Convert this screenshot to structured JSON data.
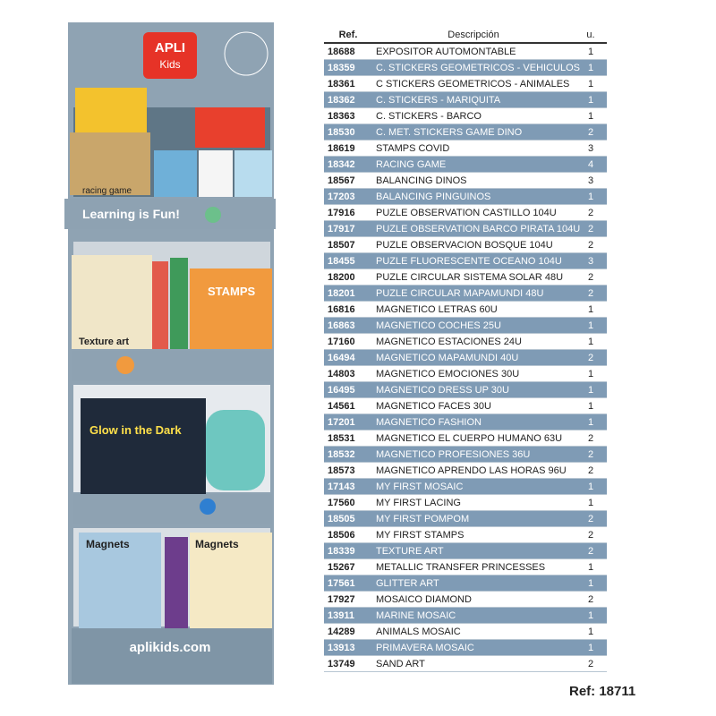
{
  "display": {
    "brand": "APLI",
    "brand_sub": "Kids",
    "slogan": "Learning is Fun!",
    "products": [
      "racing game",
      "Texture art",
      "STAMPS",
      "Glow in the Dark",
      "Magnets",
      "Magnets"
    ],
    "website": "aplikids.com"
  },
  "table": {
    "header": [
      "Ref.",
      "Descripción",
      "u."
    ],
    "rows": [
      [
        "18688",
        "EXPOSITOR AUTOMONTABLE",
        "1"
      ],
      [
        "18359",
        "C. STICKERS GEOMETRICOS - VEHICULOS",
        "1"
      ],
      [
        "18361",
        "C STICKERS GEOMETRICOS - ANIMALES",
        "1"
      ],
      [
        "18362",
        "C. STICKERS - MARIQUITA",
        "1"
      ],
      [
        "18363",
        "C. STICKERS - BARCO",
        "1"
      ],
      [
        "18530",
        "C. MET. STICKERS GAME DINO",
        "2"
      ],
      [
        "18619",
        "STAMPS COVID",
        "3"
      ],
      [
        "18342",
        "RACING GAME",
        "4"
      ],
      [
        "18567",
        "BALANCING DINOS",
        "3"
      ],
      [
        "17203",
        "BALANCING PINGUINOS",
        "1"
      ],
      [
        "17916",
        "PUZLE OBSERVATION CASTILLO 104U",
        "2"
      ],
      [
        "17917",
        "PUZLE OBSERVATION BARCO PIRATA 104U",
        "2"
      ],
      [
        "18507",
        "PUZLE OBSERVACION BOSQUE 104U",
        "2"
      ],
      [
        "18455",
        "PUZLE FLUORESCENTE OCEANO 104U",
        "3"
      ],
      [
        "18200",
        "PUZLE CIRCULAR SISTEMA SOLAR 48U",
        "2"
      ],
      [
        "18201",
        "PUZLE CIRCULAR MAPAMUNDI 48U",
        "2"
      ],
      [
        "16816",
        "MAGNETICO LETRAS 60U",
        "1"
      ],
      [
        "16863",
        "MAGNETICO COCHES 25U",
        "1"
      ],
      [
        "17160",
        "MAGNETICO ESTACIONES 24U",
        "1"
      ],
      [
        "16494",
        "MAGNETICO MAPAMUNDI 40U",
        "2"
      ],
      [
        "14803",
        "MAGNETICO EMOCIONES 30U",
        "1"
      ],
      [
        "16495",
        "MAGNETICO DRESS UP 30U",
        "1"
      ],
      [
        "14561",
        "MAGNETICO FACES 30U",
        "1"
      ],
      [
        "17201",
        "MAGNETICO FASHION",
        "1"
      ],
      [
        "18531",
        "MAGNETICO EL CUERPO HUMANO 63U",
        "2"
      ],
      [
        "18532",
        "MAGNETICO PROFESIONES 36U",
        "2"
      ],
      [
        "18573",
        "MAGNETICO APRENDO LAS HORAS 96U",
        "2"
      ],
      [
        "17143",
        "MY FIRST MOSAIC",
        "1"
      ],
      [
        "17560",
        "MY FIRST LACING",
        "1"
      ],
      [
        "18505",
        "MY FIRST POMPOM",
        "2"
      ],
      [
        "18506",
        "MY FIRST STAMPS",
        "2"
      ],
      [
        "18339",
        "TEXTURE ART",
        "2"
      ],
      [
        "15267",
        "METALLIC TRANSFER PRINCESSES",
        "1"
      ],
      [
        "17561",
        "GLITTER ART",
        "1"
      ],
      [
        "17927",
        "MOSAICO DIAMOND",
        "2"
      ],
      [
        "13911",
        "MARINE MOSAIC",
        "1"
      ],
      [
        "14289",
        "ANIMALS MOSAIC",
        "1"
      ],
      [
        "13913",
        "PRIMAVERA MOSAIC",
        "1"
      ],
      [
        "13749",
        "SAND ART",
        "2"
      ]
    ]
  },
  "footer": {
    "ref": "Ref: 18711"
  }
}
